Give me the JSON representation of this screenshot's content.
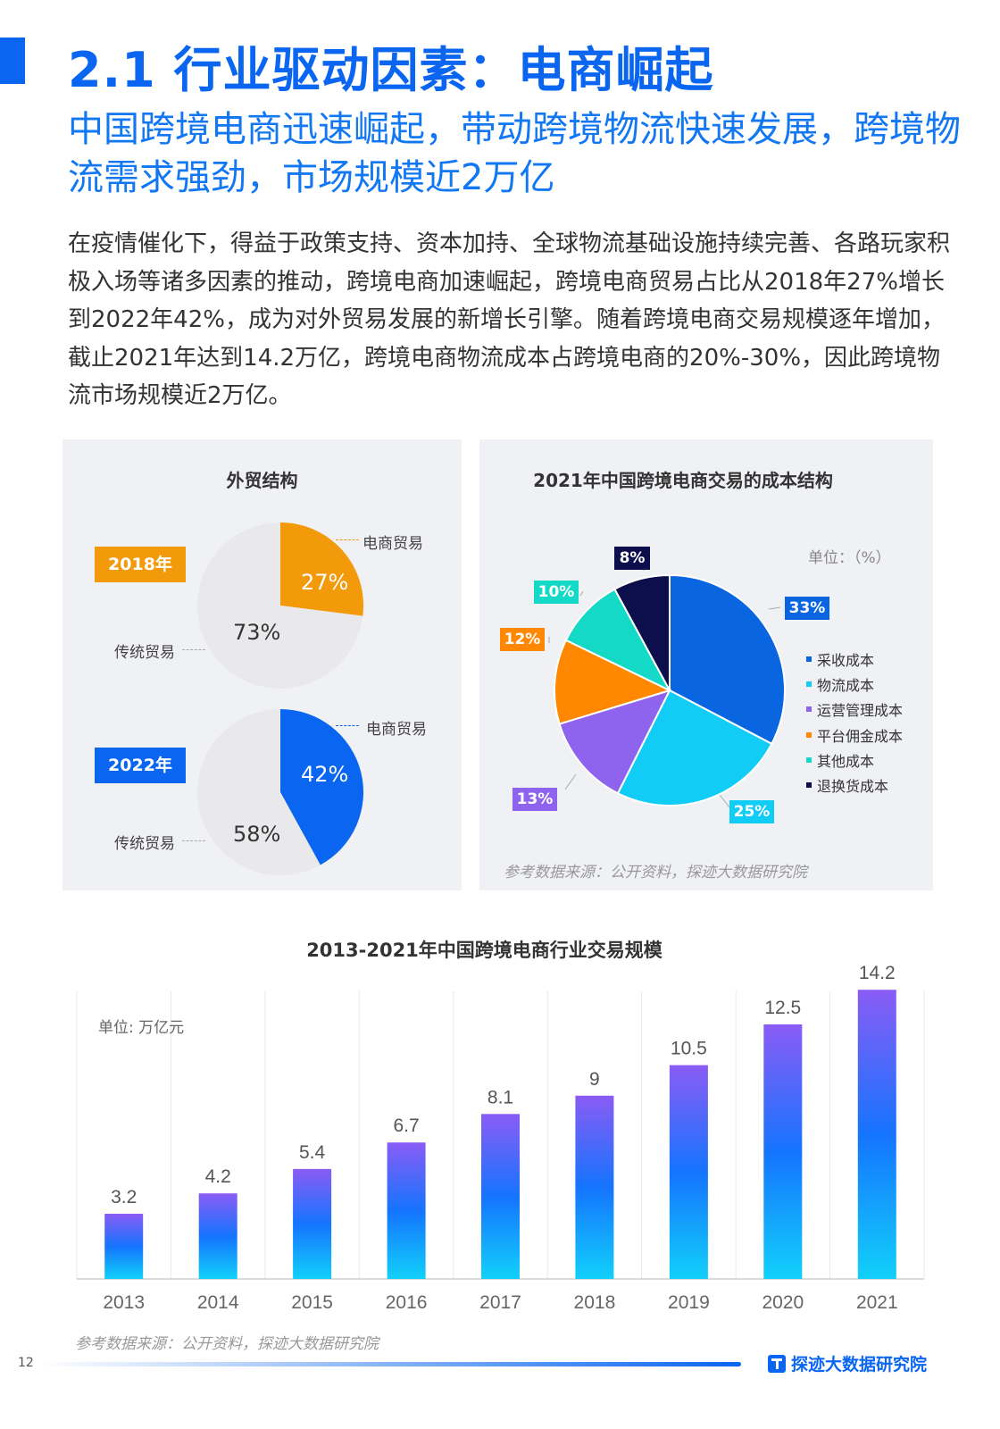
{
  "header": {
    "title": "2.1 行业驱动因素：电商崛起",
    "subtitle": "中国跨境电商迅速崛起，带动跨境物流快速发展，跨境物流需求强劲，市场规模近2万亿"
  },
  "intro": "在疫情催化下，得益于政策支持、资本加持、全球物流基础设施持续完善、各路玩家积极入场等诸多因素的推动，跨境电商加速崛起，跨境电商贸易占比从2018年27%增长到2022年42%，成为对外贸易发展的新增长引擎。随着跨境电商交易规模逐年增加，截止2021年达到14.2万亿，跨境电商物流成本占跨境电商的20%-30%，因此跨境物流市场规模近2万亿。",
  "trade_panel": {
    "title": "外贸结构",
    "charts": [
      {
        "year_label": "2018年",
        "ecommerce_label": "电商贸易",
        "traditional_label": "传统贸易",
        "ecommerce_value": 27,
        "traditional_value": 73,
        "ecommerce_pct": "27%",
        "traditional_pct": "73%",
        "accent": "#f39a0b"
      },
      {
        "year_label": "2022年",
        "ecommerce_label": "电商贸易",
        "traditional_label": "传统贸易",
        "ecommerce_value": 42,
        "traditional_value": 58,
        "ecommerce_pct": "42%",
        "traditional_pct": "58%",
        "accent": "#0a66f0"
      }
    ]
  },
  "cost_panel": {
    "title": "2021年中国跨境电商交易的成本结构",
    "unit": "单位：（%）",
    "source": "参考数据来源：公开资料，探迹大数据研究院"
  },
  "bar_panel": {
    "title": "2013-2021年中国跨境电商行业交易规模",
    "unit": "单位: 万亿元",
    "source": "参考数据来源：公开资料，探迹大数据研究院"
  },
  "chart_data": [
    {
      "type": "pie",
      "title": "外贸结构",
      "subtitle": "2018年",
      "categories": [
        "电商贸易",
        "传统贸易"
      ],
      "values": [
        27,
        73
      ],
      "colors": [
        "#f39a0b",
        "#e9e9ec"
      ]
    },
    {
      "type": "pie",
      "title": "外贸结构",
      "subtitle": "2022年",
      "categories": [
        "电商贸易",
        "传统贸易"
      ],
      "values": [
        42,
        58
      ],
      "colors": [
        "#0a66f0",
        "#e9e9ec"
      ]
    },
    {
      "type": "pie",
      "title": "2021年中国跨境电商交易的成本结构",
      "unit": "单位：（%）",
      "categories": [
        "采收成本",
        "物流成本",
        "运营管理成本",
        "平台佣金成本",
        "其他成本",
        "退换货成本"
      ],
      "values": [
        33,
        25,
        13,
        12,
        10,
        8
      ],
      "labels": [
        "33%",
        "25%",
        "13%",
        "12%",
        "10%",
        "8%"
      ],
      "colors": [
        "#0a66e0",
        "#11cdf5",
        "#8e64ee",
        "#ff8800",
        "#14d9c7",
        "#0d0f4d"
      ],
      "legend": "right"
    },
    {
      "type": "bar",
      "title": "2013-2021年中国跨境电商行业交易规模",
      "ylabel": "单位: 万亿元",
      "categories": [
        "2013",
        "2014",
        "2015",
        "2016",
        "2017",
        "2018",
        "2019",
        "2020",
        "2021"
      ],
      "values": [
        3.2,
        4.2,
        5.4,
        6.7,
        8.1,
        9,
        10.5,
        12.5,
        14.2
      ],
      "ylim": [
        0,
        15
      ],
      "grid": "vertical"
    }
  ],
  "footer": {
    "page_number": "12",
    "brand": "探迹大数据研究院"
  }
}
